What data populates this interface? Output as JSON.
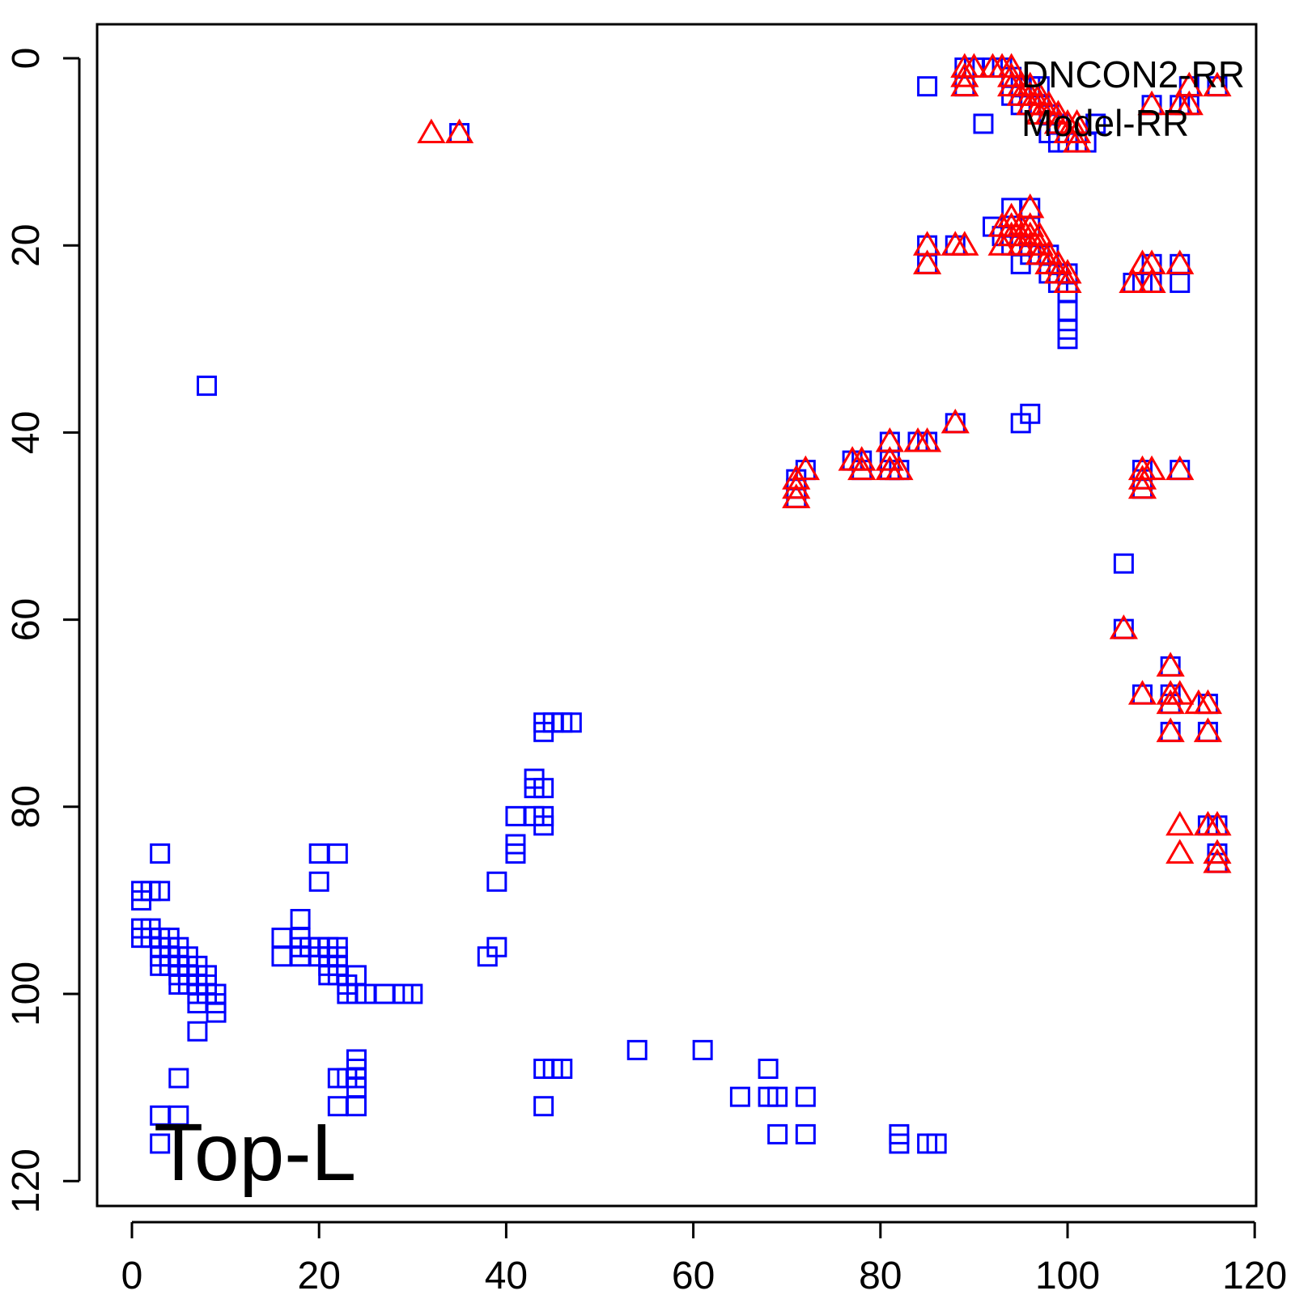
{
  "chart_data": {
    "type": "scatter",
    "title": "",
    "xlabel": "",
    "ylabel": "",
    "xlim": [
      0,
      120
    ],
    "ylim": [
      0,
      120
    ],
    "y_axis_reversed": true,
    "grid": false,
    "legend_position": "top-right",
    "annotation": "Top-L",
    "x_ticks": [
      0,
      20,
      40,
      60,
      80,
      100,
      120
    ],
    "y_ticks": [
      0,
      20,
      40,
      60,
      80,
      100,
      120
    ],
    "series": [
      {
        "name": "DNCON2-RR",
        "marker": "square",
        "color": "#0000ff",
        "points": [
          [
            8,
            35
          ],
          [
            35,
            8
          ],
          [
            85,
            3
          ],
          [
            91,
            7
          ],
          [
            89,
            1
          ],
          [
            89,
            3
          ],
          [
            90,
            1
          ],
          [
            92,
            1
          ],
          [
            93,
            1
          ],
          [
            94,
            2
          ],
          [
            95,
            3
          ],
          [
            96,
            3
          ],
          [
            97,
            3
          ],
          [
            94,
            4
          ],
          [
            95,
            5
          ],
          [
            96,
            5
          ],
          [
            97,
            5
          ],
          [
            98,
            6
          ],
          [
            99,
            7
          ],
          [
            98,
            8
          ],
          [
            99,
            9
          ],
          [
            100,
            9
          ],
          [
            101,
            9
          ],
          [
            102,
            9
          ],
          [
            103,
            7
          ],
          [
            109,
            5
          ],
          [
            112,
            5
          ],
          [
            113,
            5
          ],
          [
            113,
            3
          ],
          [
            116,
            3
          ],
          [
            92,
            18
          ],
          [
            94,
            16
          ],
          [
            96,
            16
          ],
          [
            93,
            19
          ],
          [
            94,
            20
          ],
          [
            95,
            20
          ],
          [
            95,
            22
          ],
          [
            96,
            21
          ],
          [
            97,
            21
          ],
          [
            98,
            21
          ],
          [
            98,
            23
          ],
          [
            99,
            23
          ],
          [
            99,
            24
          ],
          [
            100,
            23
          ],
          [
            100,
            25
          ],
          [
            100,
            27
          ],
          [
            100,
            29
          ],
          [
            100,
            30
          ],
          [
            96,
            18
          ],
          [
            85,
            20
          ],
          [
            85,
            22
          ],
          [
            88,
            20
          ],
          [
            107,
            24
          ],
          [
            108,
            24
          ],
          [
            109,
            22
          ],
          [
            109,
            24
          ],
          [
            112,
            22
          ],
          [
            112,
            24
          ],
          [
            95,
            39
          ],
          [
            96,
            38
          ],
          [
            88,
            39
          ],
          [
            84,
            41
          ],
          [
            85,
            41
          ],
          [
            81,
            41
          ],
          [
            81,
            43
          ],
          [
            81,
            44
          ],
          [
            82,
            44
          ],
          [
            77,
            43
          ],
          [
            78,
            43
          ],
          [
            78,
            44
          ],
          [
            71,
            45
          ],
          [
            71,
            46
          ],
          [
            71,
            47
          ],
          [
            72,
            44
          ],
          [
            108,
            44
          ],
          [
            108,
            45
          ],
          [
            108,
            46
          ],
          [
            112,
            44
          ],
          [
            106,
            54
          ],
          [
            106,
            61
          ],
          [
            111,
            65
          ],
          [
            108,
            68
          ],
          [
            111,
            68
          ],
          [
            111,
            69
          ],
          [
            111,
            72
          ],
          [
            115,
            69
          ],
          [
            115,
            72
          ],
          [
            115,
            82
          ],
          [
            116,
            82
          ],
          [
            116,
            85
          ],
          [
            116,
            86
          ],
          [
            44,
            71
          ],
          [
            45,
            71
          ],
          [
            46,
            71
          ],
          [
            47,
            71
          ],
          [
            44,
            72
          ],
          [
            43,
            77
          ],
          [
            43,
            78
          ],
          [
            44,
            78
          ],
          [
            43,
            81
          ],
          [
            44,
            81
          ],
          [
            44,
            82
          ],
          [
            41,
            81
          ],
          [
            41,
            84
          ],
          [
            41,
            85
          ],
          [
            39,
            88
          ],
          [
            38,
            96
          ],
          [
            39,
            95
          ],
          [
            1,
            89
          ],
          [
            1,
            90
          ],
          [
            2,
            89
          ],
          [
            3,
            89
          ],
          [
            3,
            85
          ],
          [
            1,
            93
          ],
          [
            1,
            94
          ],
          [
            2,
            93
          ],
          [
            2,
            94
          ],
          [
            3,
            94
          ],
          [
            3,
            95
          ],
          [
            3,
            96
          ],
          [
            3,
            97
          ],
          [
            4,
            94
          ],
          [
            4,
            95
          ],
          [
            4,
            96
          ],
          [
            4,
            97
          ],
          [
            5,
            95
          ],
          [
            5,
            96
          ],
          [
            5,
            97
          ],
          [
            5,
            98
          ],
          [
            5,
            99
          ],
          [
            6,
            96
          ],
          [
            6,
            97
          ],
          [
            6,
            98
          ],
          [
            6,
            99
          ],
          [
            7,
            97
          ],
          [
            7,
            98
          ],
          [
            7,
            99
          ],
          [
            7,
            100
          ],
          [
            7,
            101
          ],
          [
            8,
            98
          ],
          [
            8,
            99
          ],
          [
            8,
            100
          ],
          [
            9,
            100
          ],
          [
            9,
            101
          ],
          [
            9,
            102
          ],
          [
            7,
            104
          ],
          [
            5,
            109
          ],
          [
            3,
            113
          ],
          [
            5,
            113
          ],
          [
            3,
            116
          ],
          [
            16,
            94
          ],
          [
            16,
            96
          ],
          [
            18,
            92
          ],
          [
            18,
            94
          ],
          [
            18,
            95
          ],
          [
            18,
            96
          ],
          [
            19,
            95
          ],
          [
            20,
            95
          ],
          [
            20,
            96
          ],
          [
            20,
            85
          ],
          [
            22,
            85
          ],
          [
            20,
            88
          ],
          [
            21,
            95
          ],
          [
            21,
            96
          ],
          [
            21,
            97
          ],
          [
            21,
            98
          ],
          [
            22,
            95
          ],
          [
            22,
            96
          ],
          [
            22,
            97
          ],
          [
            22,
            98
          ],
          [
            23,
            99
          ],
          [
            23,
            100
          ],
          [
            24,
            98
          ],
          [
            24,
            100
          ],
          [
            25,
            100
          ],
          [
            27,
            100
          ],
          [
            29,
            100
          ],
          [
            30,
            100
          ],
          [
            22,
            109
          ],
          [
            22,
            112
          ],
          [
            23,
            109
          ],
          [
            24,
            107
          ],
          [
            24,
            108
          ],
          [
            24,
            109
          ],
          [
            24,
            110
          ],
          [
            24,
            112
          ],
          [
            44,
            108
          ],
          [
            45,
            108
          ],
          [
            46,
            108
          ],
          [
            44,
            112
          ],
          [
            54,
            106
          ],
          [
            61,
            106
          ],
          [
            65,
            111
          ],
          [
            68,
            108
          ],
          [
            68,
            111
          ],
          [
            69,
            111
          ],
          [
            69,
            115
          ],
          [
            72,
            111
          ],
          [
            72,
            115
          ],
          [
            82,
            115
          ],
          [
            82,
            116
          ],
          [
            85,
            116
          ],
          [
            86,
            116
          ]
        ]
      },
      {
        "name": "Model-RR",
        "marker": "triangle",
        "color": "#ff0000",
        "points": [
          [
            32,
            8
          ],
          [
            35,
            8
          ],
          [
            89,
            1
          ],
          [
            89,
            2
          ],
          [
            89,
            3
          ],
          [
            90,
            1
          ],
          [
            92,
            1
          ],
          [
            93,
            1
          ],
          [
            94,
            1
          ],
          [
            94,
            2
          ],
          [
            94,
            3
          ],
          [
            95,
            3
          ],
          [
            95,
            4
          ],
          [
            96,
            3
          ],
          [
            96,
            4
          ],
          [
            96,
            5
          ],
          [
            97,
            4
          ],
          [
            97,
            5
          ],
          [
            97,
            6
          ],
          [
            98,
            5
          ],
          [
            98,
            6
          ],
          [
            99,
            6
          ],
          [
            99,
            7
          ],
          [
            100,
            7
          ],
          [
            100,
            8
          ],
          [
            101,
            7
          ],
          [
            101,
            8
          ],
          [
            101,
            9
          ],
          [
            109,
            5
          ],
          [
            112,
            5
          ],
          [
            113,
            5
          ],
          [
            113,
            3
          ],
          [
            116,
            3
          ],
          [
            93,
            18
          ],
          [
            93,
            20
          ],
          [
            94,
            17
          ],
          [
            94,
            18
          ],
          [
            94,
            19
          ],
          [
            95,
            18
          ],
          [
            95,
            19
          ],
          [
            95,
            20
          ],
          [
            96,
            16
          ],
          [
            96,
            18
          ],
          [
            96,
            19
          ],
          [
            96,
            20
          ],
          [
            97,
            19
          ],
          [
            97,
            20
          ],
          [
            97,
            21
          ],
          [
            98,
            21
          ],
          [
            98,
            22
          ],
          [
            99,
            22
          ],
          [
            99,
            23
          ],
          [
            100,
            23
          ],
          [
            100,
            24
          ],
          [
            85,
            20
          ],
          [
            85,
            22
          ],
          [
            88,
            20
          ],
          [
            89,
            20
          ],
          [
            107,
            24
          ],
          [
            108,
            22
          ],
          [
            109,
            22
          ],
          [
            109,
            24
          ],
          [
            112,
            22
          ],
          [
            88,
            39
          ],
          [
            84,
            41
          ],
          [
            85,
            41
          ],
          [
            81,
            41
          ],
          [
            81,
            43
          ],
          [
            81,
            44
          ],
          [
            82,
            44
          ],
          [
            77,
            43
          ],
          [
            78,
            43
          ],
          [
            78,
            44
          ],
          [
            71,
            45
          ],
          [
            71,
            46
          ],
          [
            71,
            47
          ],
          [
            72,
            44
          ],
          [
            108,
            44
          ],
          [
            108,
            45
          ],
          [
            108,
            46
          ],
          [
            109,
            44
          ],
          [
            112,
            44
          ],
          [
            106,
            61
          ],
          [
            111,
            65
          ],
          [
            108,
            68
          ],
          [
            111,
            68
          ],
          [
            111,
            69
          ],
          [
            111,
            72
          ],
          [
            112,
            68
          ],
          [
            114,
            69
          ],
          [
            115,
            69
          ],
          [
            115,
            72
          ],
          [
            112,
            82
          ],
          [
            112,
            85
          ],
          [
            115,
            82
          ],
          [
            116,
            82
          ],
          [
            116,
            85
          ],
          [
            116,
            86
          ]
        ]
      }
    ]
  }
}
